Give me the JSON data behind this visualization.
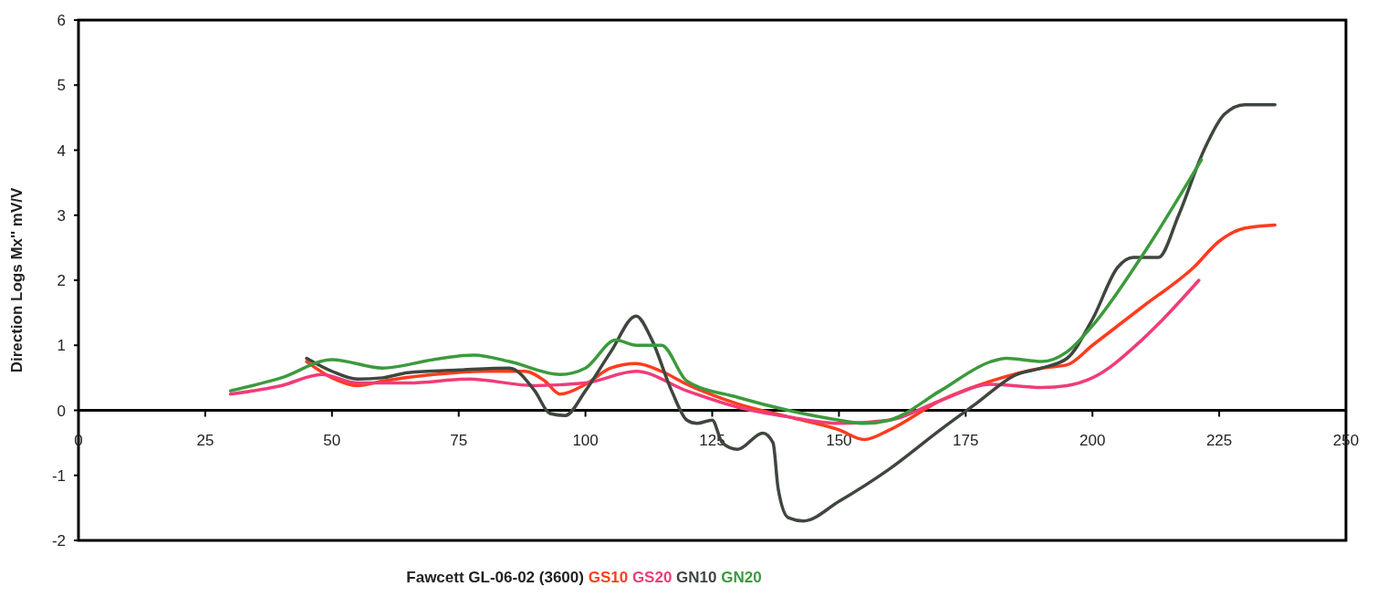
{
  "chart_data": {
    "type": "line",
    "xlabel": "Fawcett GL-06-02 (3600)",
    "ylabel": "Direction Logs  Mx''  mV/V",
    "xlim": [
      0,
      250
    ],
    "xticks": [
      0,
      25,
      50,
      75,
      100,
      125,
      150,
      175,
      200,
      225,
      250
    ],
    "ylim": [
      -2,
      6
    ],
    "yticks": [
      -2,
      -1,
      0,
      1,
      2,
      3,
      4,
      5,
      6
    ],
    "grid": false,
    "legend": "bottom",
    "marker": "none",
    "line_style": "solid",
    "series": [
      {
        "name": "GS10",
        "color": "#ff3c1e",
        "x": [
          45,
          50,
          55,
          60,
          70,
          80,
          88,
          92,
          95,
          100,
          105,
          110,
          115,
          120,
          130,
          140,
          150,
          155,
          160,
          170,
          180,
          190,
          195,
          200,
          210,
          220,
          225,
          230,
          236
        ],
        "values": [
          0.75,
          0.5,
          0.38,
          0.45,
          0.55,
          0.6,
          0.6,
          0.45,
          0.25,
          0.4,
          0.65,
          0.72,
          0.6,
          0.4,
          0.1,
          -0.1,
          -0.3,
          -0.45,
          -0.3,
          0.15,
          0.45,
          0.65,
          0.7,
          1.0,
          1.6,
          2.2,
          2.6,
          2.8,
          2.85
        ]
      },
      {
        "name": "GS20",
        "color": "#f03c78",
        "x": [
          30,
          40,
          48,
          55,
          65,
          77,
          90,
          100,
          110,
          120,
          130,
          140,
          150,
          160,
          170,
          180,
          190,
          195,
          200,
          210,
          221
        ],
        "values": [
          0.25,
          0.38,
          0.55,
          0.42,
          0.42,
          0.48,
          0.38,
          0.42,
          0.6,
          0.3,
          0.05,
          -0.1,
          -0.2,
          -0.15,
          0.15,
          0.4,
          0.35,
          0.38,
          0.5,
          1.1,
          2.0
        ]
      },
      {
        "name": "GN10",
        "color": "#3e463e",
        "x": [
          45,
          50,
          55,
          60,
          65,
          75,
          85,
          90,
          93,
          96,
          100,
          105,
          110,
          113,
          117,
          120,
          122,
          125,
          127,
          130,
          135,
          137,
          138,
          140,
          143,
          150,
          160,
          170,
          177,
          185,
          190,
          195,
          200,
          205,
          208,
          213,
          217,
          222,
          226,
          230,
          236
        ],
        "values": [
          0.8,
          0.6,
          0.48,
          0.5,
          0.58,
          0.62,
          0.65,
          0.3,
          -0.05,
          -0.08,
          0.3,
          0.9,
          1.45,
          1.1,
          0.3,
          -0.15,
          -0.2,
          -0.15,
          -0.5,
          -0.6,
          -0.35,
          -0.5,
          -1.2,
          -1.65,
          -1.7,
          -1.4,
          -0.9,
          -0.3,
          0.1,
          0.55,
          0.65,
          0.8,
          1.4,
          2.2,
          2.35,
          2.35,
          3.0,
          4.0,
          4.55,
          4.7,
          4.7
        ]
      },
      {
        "name": "GN20",
        "color": "#3c9a3c",
        "x": [
          30,
          40,
          50,
          60,
          70,
          78,
          85,
          95,
          100,
          106,
          110,
          115,
          120,
          130,
          140,
          150,
          155,
          160,
          170,
          180,
          183,
          190,
          195,
          200,
          210,
          221.5
        ],
        "values": [
          0.3,
          0.5,
          0.78,
          0.65,
          0.78,
          0.85,
          0.75,
          0.55,
          0.65,
          1.08,
          1.0,
          1.0,
          0.45,
          0.2,
          0.0,
          -0.15,
          -0.2,
          -0.15,
          0.3,
          0.75,
          0.8,
          0.75,
          0.9,
          1.3,
          2.4,
          3.85
        ]
      }
    ]
  }
}
